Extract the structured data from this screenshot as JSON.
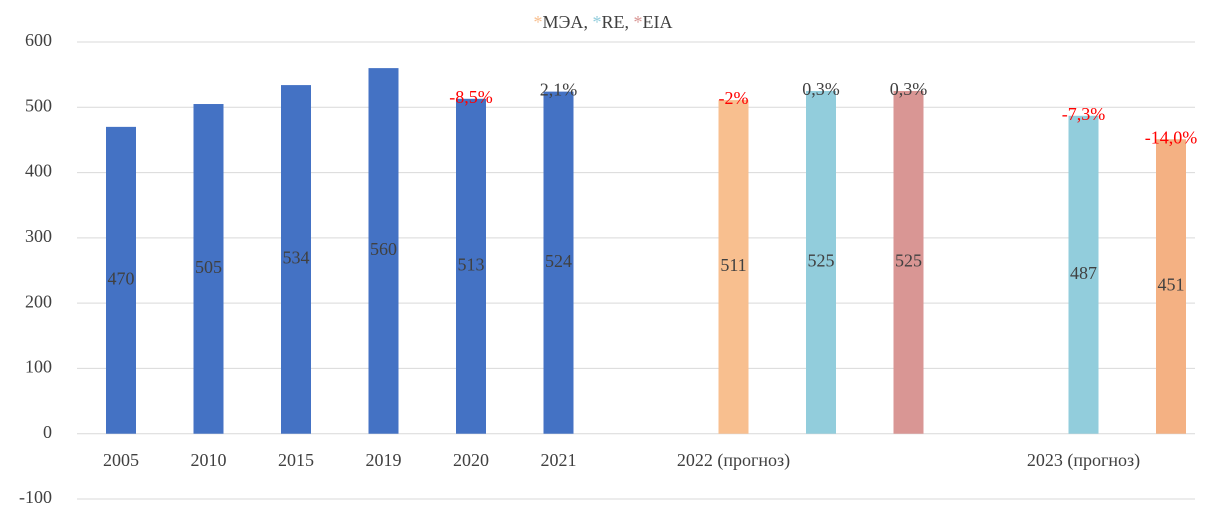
{
  "chart_data": {
    "type": "bar",
    "legend_marker": "*",
    "legend_separator": ", ",
    "legend": [
      {
        "name": "МЭА",
        "color": "#f8bf8f"
      },
      {
        "name": "RE",
        "color": "#92cddc"
      },
      {
        "name": "EIA",
        "color": "#d99694"
      }
    ],
    "categories": [
      "2005",
      "2010",
      "2015",
      "2019",
      "2020",
      "2021",
      null,
      "2022 (прогноз)",
      null,
      null,
      null,
      "2023 (прогноз)",
      null
    ],
    "values": [
      470,
      505,
      534,
      560,
      513,
      524,
      null,
      511,
      525,
      525,
      null,
      487,
      451
    ],
    "colors": [
      "#4472c4",
      "#4472c4",
      "#4472c4",
      "#4472c4",
      "#4472c4",
      "#4472c4",
      null,
      "#f8bf8f",
      "#92cddc",
      "#d99694",
      null,
      "#92cddc",
      "#f4b183"
    ],
    "change_labels": [
      null,
      null,
      null,
      null,
      "-8,5%",
      "2,1%",
      null,
      "-2%",
      "0,3%",
      "0,3%",
      null,
      "-7,3%",
      "-14,0%"
    ],
    "change_colors": [
      null,
      null,
      null,
      null,
      "#ff0000",
      "#404040",
      null,
      "#ff0000",
      "#404040",
      "#404040",
      null,
      "#ff0000",
      "#ff0000"
    ],
    "ylim": [
      -100,
      600
    ],
    "yticks": [
      -100,
      0,
      100,
      200,
      300,
      400,
      500,
      600
    ],
    "grid": true
  }
}
